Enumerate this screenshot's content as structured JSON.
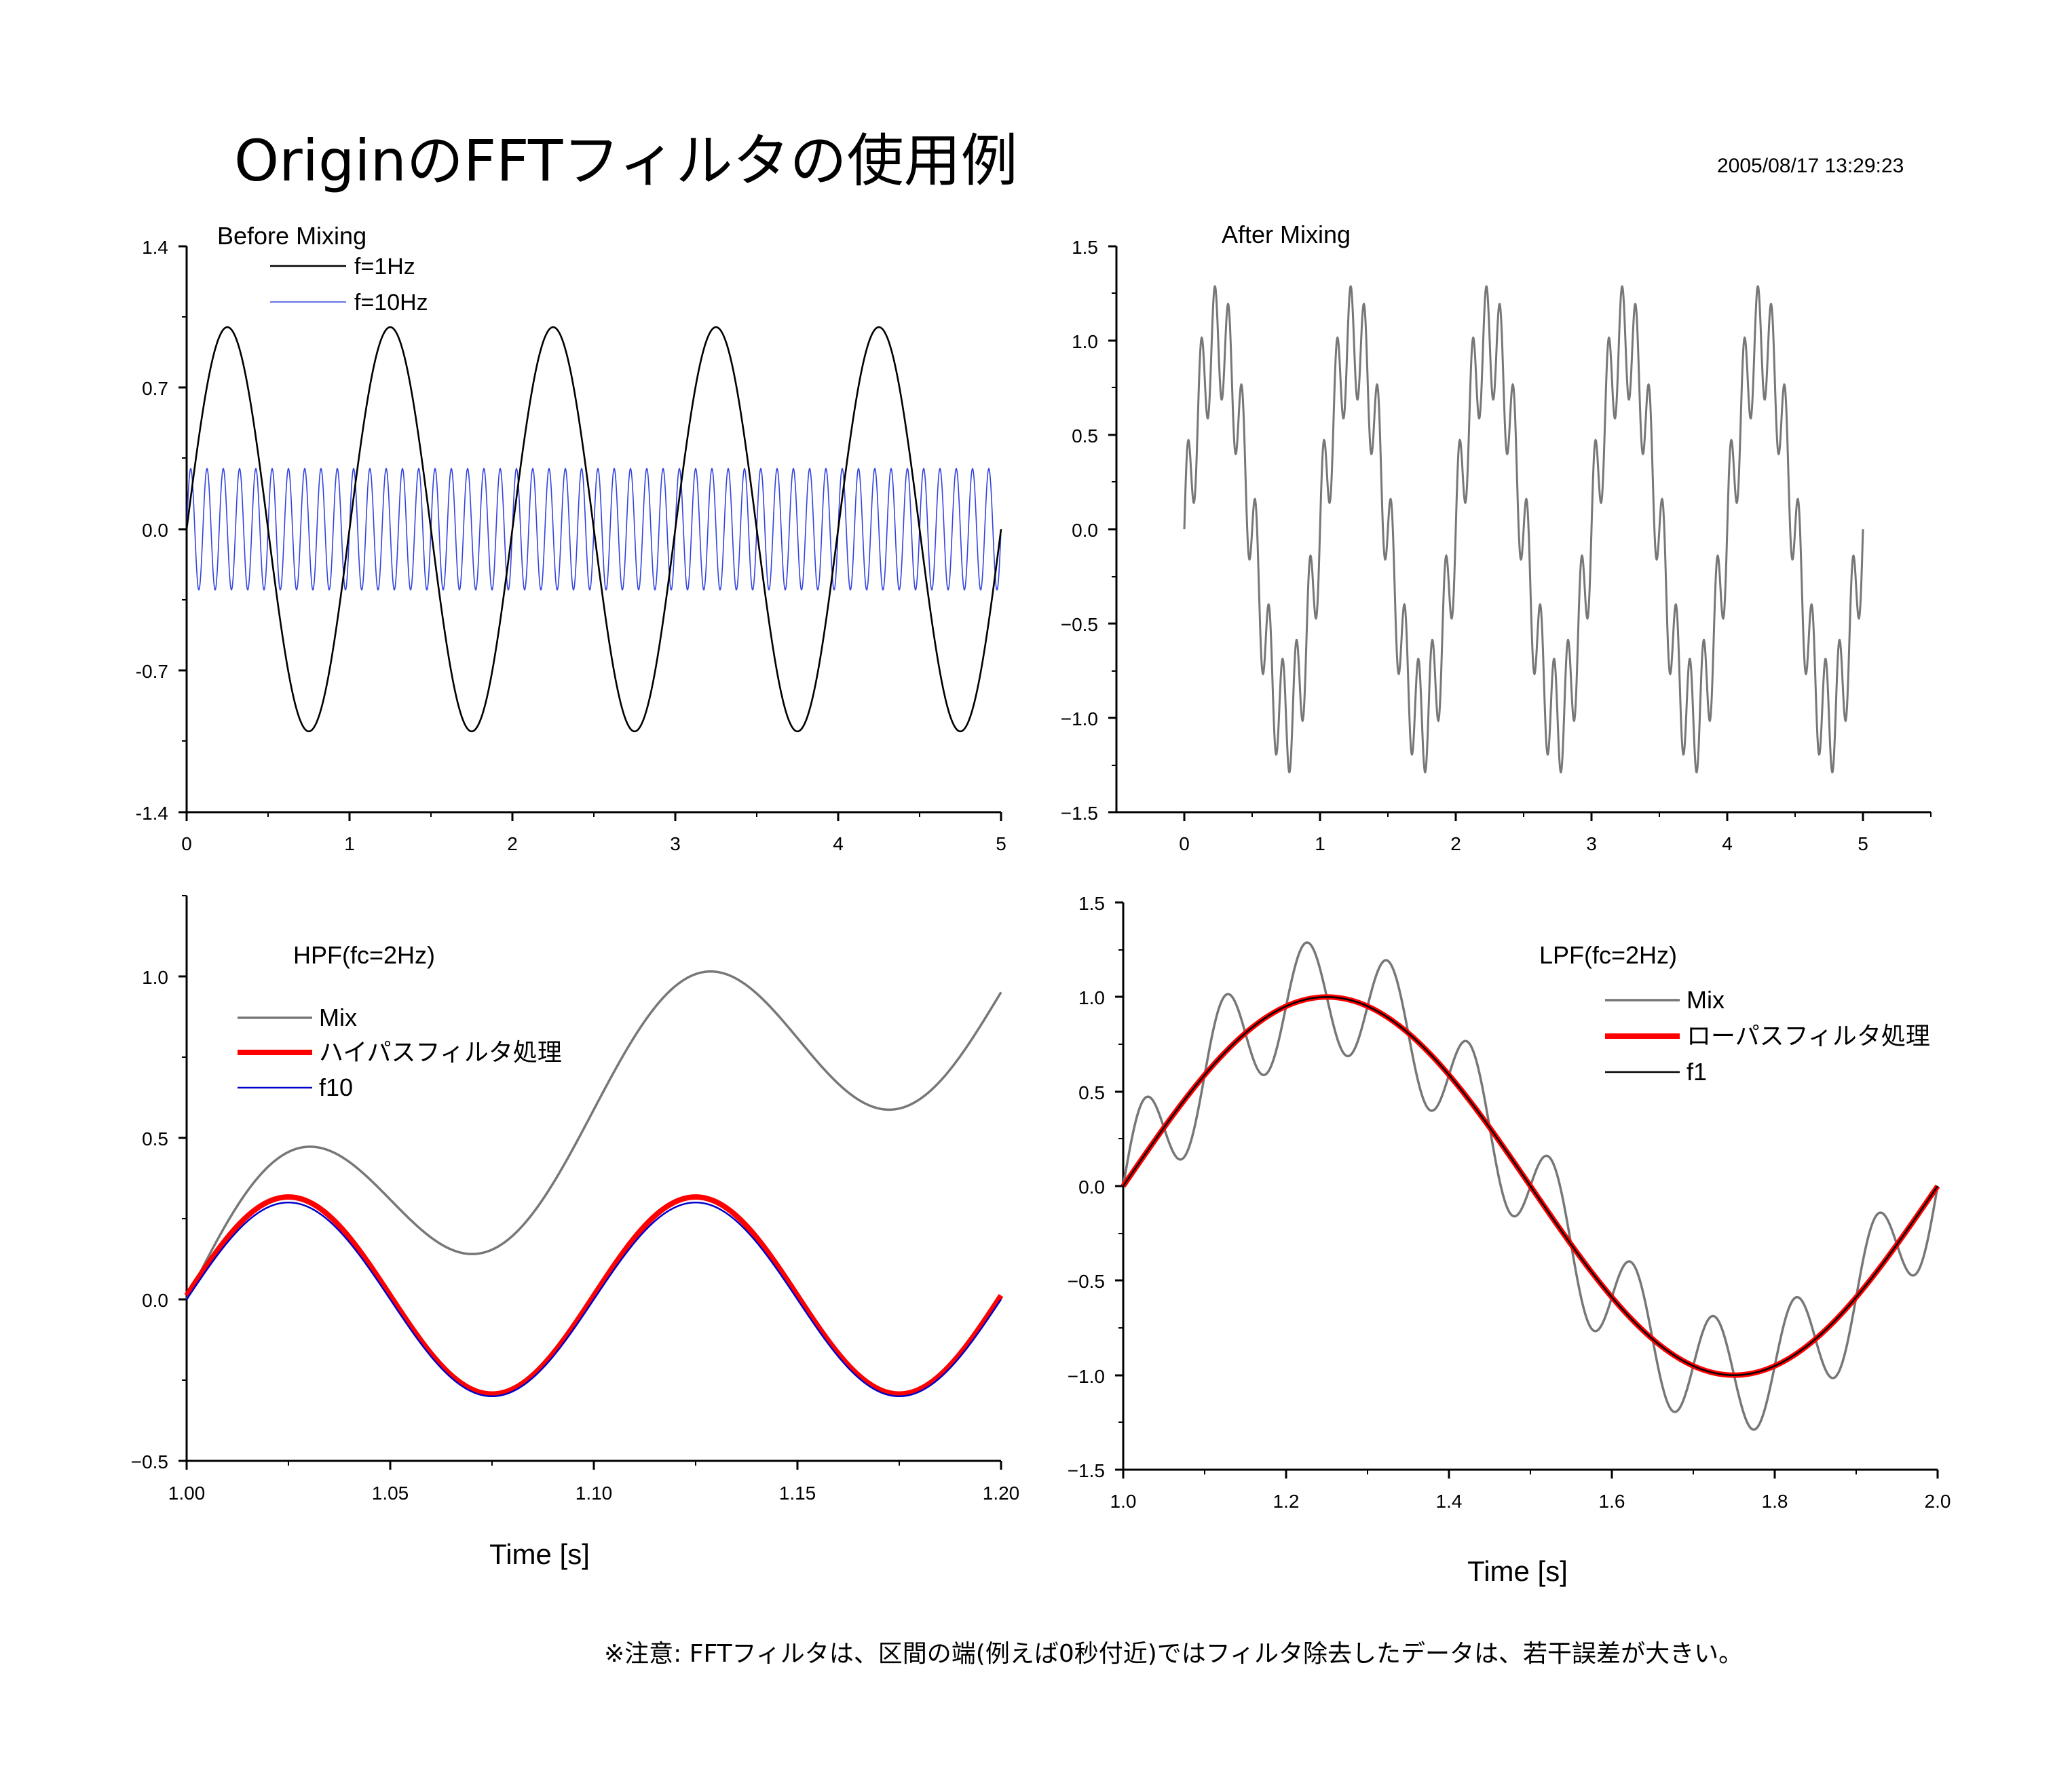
{
  "title": "OriginのFFTフィルタの使用例",
  "timestamp": "2005/08/17 13:29:23",
  "note": "※注意:  FFTフィルタは、区間の端(例えば0秒付近)ではフィルタ除去したデータは、若干誤差が大きい。",
  "colors": {
    "black": "#000000",
    "blue": "#3344dd",
    "gray": "#777777",
    "red": "#ff0000",
    "navy": "#0000cc"
  },
  "chart_data": [
    {
      "type": "line",
      "title": "Before  Mixing",
      "xlabel": "",
      "ylabel": "",
      "xlim": [
        0,
        5
      ],
      "ylim": [
        -1.4,
        1.4
      ],
      "xticks": [
        "0",
        "1",
        "2",
        "3",
        "4",
        "5"
      ],
      "yticks": [
        "-1.4",
        "-0.7",
        "0.0",
        "0.7",
        "1.4"
      ],
      "legend_position": "top-left",
      "series": [
        {
          "name": "f=1Hz",
          "function": "sin(2*pi*1*t)",
          "amplitude": 1.0,
          "frequency_hz": 1,
          "x_range": [
            0,
            5
          ],
          "color": "#000000"
        },
        {
          "name": "f=10Hz",
          "function": "0.3*sin(2*pi*10*t)",
          "amplitude": 0.3,
          "frequency_hz": 10,
          "x_range": [
            0,
            5
          ],
          "color": "#3344dd"
        }
      ]
    },
    {
      "type": "line",
      "title": "After Mixing",
      "xlabel": "",
      "ylabel": "",
      "xlim": [
        -0.5,
        5.5
      ],
      "ylim": [
        -1.5,
        1.5
      ],
      "xticks": [
        "0",
        "1",
        "2",
        "3",
        "4",
        "5"
      ],
      "yticks": [
        "−1.5",
        "−1.0",
        "−0.5",
        "0.0",
        "0.5",
        "1.0",
        "1.5"
      ],
      "series": [
        {
          "function": "sin(2*pi*1*t) + 0.3*sin(2*pi*10*t)",
          "x_range": [
            0,
            5
          ],
          "color": "#777777"
        }
      ]
    },
    {
      "type": "line",
      "title": "HPF(fc=2Hz)",
      "xlabel": "Time [s]",
      "ylabel": "",
      "xlim": [
        1.0,
        1.2
      ],
      "ylim": [
        -0.5,
        1.25
      ],
      "xticks": [
        "1.00",
        "1.05",
        "1.10",
        "1.15",
        "1.20"
      ],
      "yticks": [
        "−0.5",
        "0.0",
        "0.5",
        "1.0"
      ],
      "legend_position": "top-left",
      "series": [
        {
          "name": "Mix",
          "function": "sin(2*pi*1*t) + 0.3*sin(2*pi*10*t)",
          "x_range": [
            1.0,
            1.2
          ],
          "color": "#777777"
        },
        {
          "name": "ハイパスフィルタ処理",
          "function": "0.305*sin(2*pi*10*t) + 0.012",
          "x_range": [
            1.0,
            1.2
          ],
          "color": "#ff0000"
        },
        {
          "name": "f10",
          "function": "0.3*sin(2*pi*10*t)",
          "x_range": [
            1.0,
            1.2
          ],
          "color": "#0000cc"
        }
      ]
    },
    {
      "type": "line",
      "title": "LPF(fc=2Hz)",
      "xlabel": "Time [s]",
      "ylabel": "",
      "xlim": [
        1.0,
        2.0
      ],
      "ylim": [
        -1.5,
        1.5
      ],
      "xticks": [
        "1.0",
        "1.2",
        "1.4",
        "1.6",
        "1.8",
        "2.0"
      ],
      "yticks": [
        "−1.5",
        "−1.0",
        "−0.5",
        "0.0",
        "0.5",
        "1.0",
        "1.5"
      ],
      "legend_position": "top-right",
      "series": [
        {
          "name": "Mix",
          "function": "sin(2*pi*1*t) + 0.3*sin(2*pi*10*t)",
          "x_range": [
            1.0,
            2.0
          ],
          "color": "#777777"
        },
        {
          "name": "ローパスフィルタ処理",
          "function": "sin(2*pi*1*t)",
          "x_range": [
            1.0,
            2.0
          ],
          "color": "#ff0000"
        },
        {
          "name": "f1",
          "function": "sin(2*pi*1*t)",
          "x_range": [
            1.0,
            2.0
          ],
          "color": "#000000"
        }
      ]
    }
  ]
}
